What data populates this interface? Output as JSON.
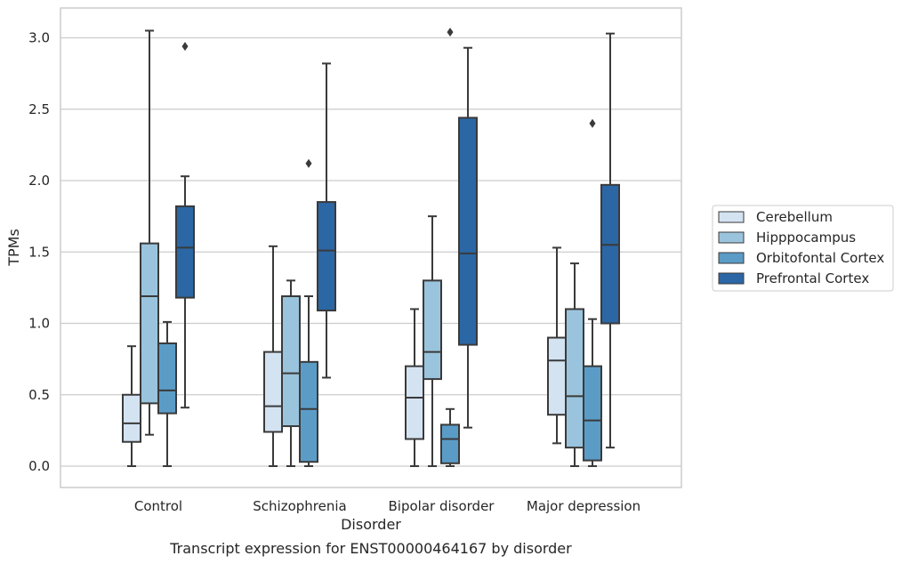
{
  "caption": "Transcript expression for ENST00000464167 by disorder",
  "chart_data": {
    "type": "boxplot",
    "xlabel": "Disorder",
    "ylabel": "TPMs",
    "ylim": [
      -0.12,
      3.2
    ],
    "yticks": [
      0.0,
      0.5,
      1.0,
      1.5,
      2.0,
      2.5,
      3.0
    ],
    "ytick_labels": [
      "0.0",
      "0.5",
      "1.0",
      "1.5",
      "2.0",
      "2.5",
      "3.0"
    ],
    "grid": true,
    "legend_position": "right",
    "categories": [
      "Control",
      "Schizophrenia",
      "Bipolar disorder",
      "Major depression"
    ],
    "series": [
      {
        "name": "Cerebellum",
        "color": "#d4e3f2",
        "boxes": [
          {
            "whislo": 0.0,
            "q1": 0.17,
            "med": 0.3,
            "q3": 0.5,
            "whishi": 0.84,
            "fliers": []
          },
          {
            "whislo": 0.0,
            "q1": 0.24,
            "med": 0.42,
            "q3": 0.8,
            "whishi": 1.54,
            "fliers": []
          },
          {
            "whislo": 0.0,
            "q1": 0.19,
            "med": 0.48,
            "q3": 0.7,
            "whishi": 1.1,
            "fliers": []
          },
          {
            "whislo": 0.16,
            "q1": 0.36,
            "med": 0.74,
            "q3": 0.9,
            "whishi": 1.53,
            "fliers": []
          }
        ]
      },
      {
        "name": "Hipppocampus",
        "color": "#9ac4dd",
        "boxes": [
          {
            "whislo": 0.22,
            "q1": 0.44,
            "med": 1.19,
            "q3": 1.56,
            "whishi": 3.05,
            "fliers": []
          },
          {
            "whislo": 0.0,
            "q1": 0.28,
            "med": 0.65,
            "q3": 1.19,
            "whishi": 1.3,
            "fliers": []
          },
          {
            "whislo": 0.0,
            "q1": 0.61,
            "med": 0.8,
            "q3": 1.3,
            "whishi": 1.75,
            "fliers": []
          },
          {
            "whislo": 0.0,
            "q1": 0.13,
            "med": 0.49,
            "q3": 1.1,
            "whishi": 1.42,
            "fliers": []
          }
        ]
      },
      {
        "name": "Orbitofontal Cortex",
        "color": "#5b9cc7",
        "boxes": [
          {
            "whislo": 0.0,
            "q1": 0.37,
            "med": 0.53,
            "q3": 0.86,
            "whishi": 1.01,
            "fliers": []
          },
          {
            "whislo": 0.0,
            "q1": 0.03,
            "med": 0.4,
            "q3": 0.73,
            "whishi": 1.19,
            "fliers": [
              2.12
            ]
          },
          {
            "whislo": 0.0,
            "q1": 0.02,
            "med": 0.19,
            "q3": 0.29,
            "whishi": 0.4,
            "fliers": [
              3.04
            ]
          },
          {
            "whislo": 0.0,
            "q1": 0.04,
            "med": 0.32,
            "q3": 0.7,
            "whishi": 1.03,
            "fliers": [
              2.4
            ]
          }
        ]
      },
      {
        "name": "Prefrontal Cortex",
        "color": "#2b67a5",
        "boxes": [
          {
            "whislo": 0.41,
            "q1": 1.18,
            "med": 1.53,
            "q3": 1.82,
            "whishi": 2.03,
            "fliers": [
              2.94
            ]
          },
          {
            "whislo": 0.62,
            "q1": 1.09,
            "med": 1.51,
            "q3": 1.85,
            "whishi": 2.82,
            "fliers": []
          },
          {
            "whislo": 0.27,
            "q1": 0.85,
            "med": 1.49,
            "q3": 2.44,
            "whishi": 2.93,
            "fliers": []
          },
          {
            "whislo": 0.13,
            "q1": 1.0,
            "med": 1.55,
            "q3": 1.97,
            "whishi": 3.03,
            "fliers": []
          }
        ]
      }
    ]
  }
}
